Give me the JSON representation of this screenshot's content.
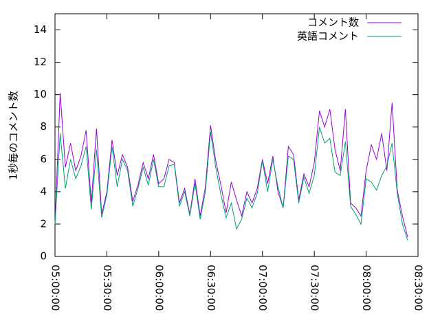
{
  "chart_data": {
    "type": "line",
    "ylabel": "1秒毎のコメント数",
    "x": [
      "05:00:00",
      "05:03:00",
      "05:06:00",
      "05:09:00",
      "05:12:00",
      "05:15:00",
      "05:18:00",
      "05:21:00",
      "05:24:00",
      "05:27:00",
      "05:30:00",
      "05:33:00",
      "05:36:00",
      "05:39:00",
      "05:42:00",
      "05:45:00",
      "05:48:00",
      "05:51:00",
      "05:54:00",
      "05:57:00",
      "06:00:00",
      "06:03:00",
      "06:06:00",
      "06:09:00",
      "06:12:00",
      "06:15:00",
      "06:18:00",
      "06:21:00",
      "06:24:00",
      "06:27:00",
      "06:30:00",
      "06:33:00",
      "06:36:00",
      "06:39:00",
      "06:42:00",
      "06:45:00",
      "06:48:00",
      "06:51:00",
      "06:54:00",
      "06:57:00",
      "07:00:00",
      "07:03:00",
      "07:06:00",
      "07:09:00",
      "07:12:00",
      "07:15:00",
      "07:18:00",
      "07:21:00",
      "07:24:00",
      "07:27:00",
      "07:30:00",
      "07:33:00",
      "07:36:00",
      "07:39:00",
      "07:42:00",
      "07:45:00",
      "07:48:00",
      "07:51:00",
      "07:54:00",
      "07:57:00",
      "08:00:00",
      "08:03:00",
      "08:06:00",
      "08:09:00",
      "08:12:00",
      "08:15:00",
      "08:18:00",
      "08:21:00",
      "08:24:00"
    ],
    "series": [
      {
        "name": "コメント数",
        "color": "#9400d3",
        "values": [
          2.0,
          10.1,
          5.5,
          7.0,
          5.3,
          6.2,
          7.8,
          3.3,
          7.9,
          2.6,
          4.0,
          7.2,
          5.0,
          6.3,
          5.5,
          3.4,
          4.4,
          5.8,
          4.8,
          6.3,
          4.5,
          4.8,
          6.0,
          5.8,
          3.3,
          4.2,
          2.6,
          4.8,
          2.5,
          4.3,
          8.1,
          5.9,
          4.4,
          2.7,
          4.6,
          3.5,
          2.5,
          4.0,
          3.3,
          4.2,
          6.0,
          4.5,
          6.2,
          4.0,
          3.0,
          6.8,
          6.3,
          3.5,
          5.1,
          4.3,
          5.8,
          9.0,
          8.0,
          9.1,
          6.6,
          5.3,
          9.1,
          3.3,
          3.0,
          2.5,
          5.3,
          6.9,
          6.0,
          7.6,
          5.3,
          9.5,
          4.1,
          2.5,
          1.2
        ]
      },
      {
        "name": "英語コメント",
        "color": "#009e73",
        "values": [
          2.0,
          7.6,
          4.2,
          6.0,
          4.8,
          5.6,
          6.8,
          2.9,
          6.6,
          2.4,
          3.8,
          6.8,
          4.3,
          6.0,
          5.3,
          3.1,
          4.2,
          5.5,
          4.4,
          6.0,
          4.3,
          4.3,
          5.6,
          5.7,
          3.1,
          4.0,
          2.5,
          4.5,
          2.3,
          4.0,
          7.7,
          5.5,
          3.8,
          2.4,
          3.3,
          1.7,
          2.3,
          3.6,
          3.0,
          3.9,
          5.9,
          4.0,
          6.0,
          4.3,
          3.0,
          6.2,
          6.0,
          3.3,
          4.9,
          3.9,
          5.0,
          8.0,
          7.0,
          7.3,
          5.2,
          5.0,
          7.1,
          3.1,
          2.6,
          2.0,
          4.8,
          4.6,
          4.1,
          5.0,
          5.6,
          7.0,
          3.9,
          2.0,
          1.0
        ]
      }
    ],
    "xlim": [
      "05:00:00",
      "08:30:00"
    ],
    "xticks": [
      "05:00:00",
      "05:30:00",
      "06:00:00",
      "06:30:00",
      "07:00:00",
      "07:30:00",
      "08:00:00",
      "08:30:00"
    ],
    "ylim": [
      0,
      15
    ],
    "yticks": [
      0,
      2,
      4,
      6,
      8,
      10,
      12,
      14
    ],
    "legend": "top-right"
  }
}
